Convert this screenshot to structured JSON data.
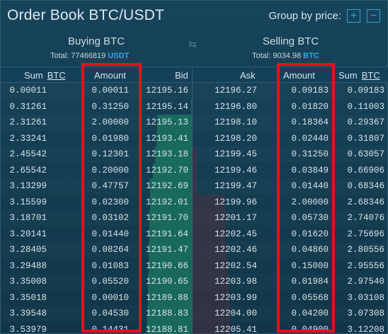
{
  "header": {
    "title": "Order Book BTC/USDT",
    "group_label": "Group by price:",
    "plus_glyph": "+",
    "minus_glyph": "−"
  },
  "buy": {
    "title": "Buying BTC",
    "total_label": "Total: 77466819",
    "total_currency": "USDT"
  },
  "sell": {
    "title": "Selling BTC",
    "total_label": "Total: 9034.98",
    "total_currency": "BTC"
  },
  "columns": {
    "sum_buy": "Sum",
    "sum_buy_unit": "BTC",
    "amount_buy": "Amount",
    "bid": "Bid",
    "ask": "Ask",
    "amount_sell": "Amount",
    "sum_sell": "Sum",
    "sum_sell_unit": "BTC"
  },
  "rows": [
    {
      "sum_b": "0.00011",
      "amt_b": "0.00011",
      "bid": "12195.16",
      "ask": "12196.27",
      "amt_a": "0.09183",
      "sum_a": "0.09183",
      "bid_depth": 0.0,
      "ask_depth": 0.0
    },
    {
      "sum_b": "0.31261",
      "amt_b": "0.31250",
      "bid": "12195.14",
      "ask": "12196.80",
      "amt_a": "0.01820",
      "sum_a": "0.11003",
      "bid_depth": 0.02,
      "ask_depth": 0.0
    },
    {
      "sum_b": "2.31261",
      "amt_b": "2.00000",
      "bid": "12195.13",
      "ask": "12198.10",
      "amt_a": "0.18364",
      "sum_a": "0.29367",
      "bid_depth": 0.77,
      "ask_depth": 0.0
    },
    {
      "sum_b": "2.33241",
      "amt_b": "0.01980",
      "bid": "12193.41",
      "ask": "12198.20",
      "amt_a": "0.02440",
      "sum_a": "0.31807",
      "bid_depth": 0.78,
      "ask_depth": 0.0
    },
    {
      "sum_b": "2.45542",
      "amt_b": "0.12301",
      "bid": "12193.18",
      "ask": "12199.45",
      "amt_a": "0.31250",
      "sum_a": "0.63057",
      "bid_depth": 0.82,
      "ask_depth": 0.08
    },
    {
      "sum_b": "2.65542",
      "amt_b": "0.20000",
      "bid": "12192.70",
      "ask": "12199.46",
      "amt_a": "0.03849",
      "sum_a": "0.66906",
      "bid_depth": 0.86,
      "ask_depth": 0.08
    },
    {
      "sum_b": "3.13299",
      "amt_b": "0.47757",
      "bid": "12192.69",
      "ask": "12199.47",
      "amt_a": "0.01440",
      "sum_a": "0.68346",
      "bid_depth": 0.92,
      "ask_depth": 0.08
    },
    {
      "sum_b": "3.15599",
      "amt_b": "0.02300",
      "bid": "12192.01",
      "ask": "12199.96",
      "amt_a": "2.00000",
      "sum_a": "2.68346",
      "bid_depth": 0.92,
      "ask_depth": 0.65
    },
    {
      "sum_b": "3.18701",
      "amt_b": "0.03102",
      "bid": "12191.70",
      "ask": "12201.17",
      "amt_a": "0.05730",
      "sum_a": "2.74076",
      "bid_depth": 0.93,
      "ask_depth": 0.67
    },
    {
      "sum_b": "3.20141",
      "amt_b": "0.01440",
      "bid": "12191.64",
      "ask": "12202.45",
      "amt_a": "0.01620",
      "sum_a": "2.75696",
      "bid_depth": 0.93,
      "ask_depth": 0.67
    },
    {
      "sum_b": "3.28405",
      "amt_b": "0.08264",
      "bid": "12191.47",
      "ask": "12202.46",
      "amt_a": "0.04860",
      "sum_a": "2.80556",
      "bid_depth": 0.95,
      "ask_depth": 0.68
    },
    {
      "sum_b": "3.29488",
      "amt_b": "0.01083",
      "bid": "12190.66",
      "ask": "12202.54",
      "amt_a": "0.15000",
      "sum_a": "2.95556",
      "bid_depth": 0.95,
      "ask_depth": 0.72
    },
    {
      "sum_b": "3.35008",
      "amt_b": "0.05520",
      "bid": "12190.65",
      "ask": "12203.98",
      "amt_a": "0.01984",
      "sum_a": "2.97540",
      "bid_depth": 0.97,
      "ask_depth": 0.72
    },
    {
      "sum_b": "3.35018",
      "amt_b": "0.00010",
      "bid": "12189.88",
      "ask": "12203.99",
      "amt_a": "0.05568",
      "sum_a": "3.03108",
      "bid_depth": 0.97,
      "ask_depth": 0.74
    },
    {
      "sum_b": "3.39548",
      "amt_b": "0.04530",
      "bid": "12188.83",
      "ask": "12204.00",
      "amt_a": "0.04200",
      "sum_a": "3.07308",
      "bid_depth": 0.98,
      "ask_depth": 0.75
    },
    {
      "sum_b": "3.53979",
      "amt_b": "0.14431",
      "bid": "12188.81",
      "ask": "12205.41",
      "amt_a": "0.04900",
      "sum_a": "3.12208",
      "bid_depth": 1.0,
      "ask_depth": 0.76
    }
  ],
  "colors": {
    "background": "#123a4e",
    "accent": "#2aa0d8",
    "bid_depth": "#1b7a62",
    "ask_depth": "#6a2c3a",
    "highlight": "#e8101a"
  }
}
